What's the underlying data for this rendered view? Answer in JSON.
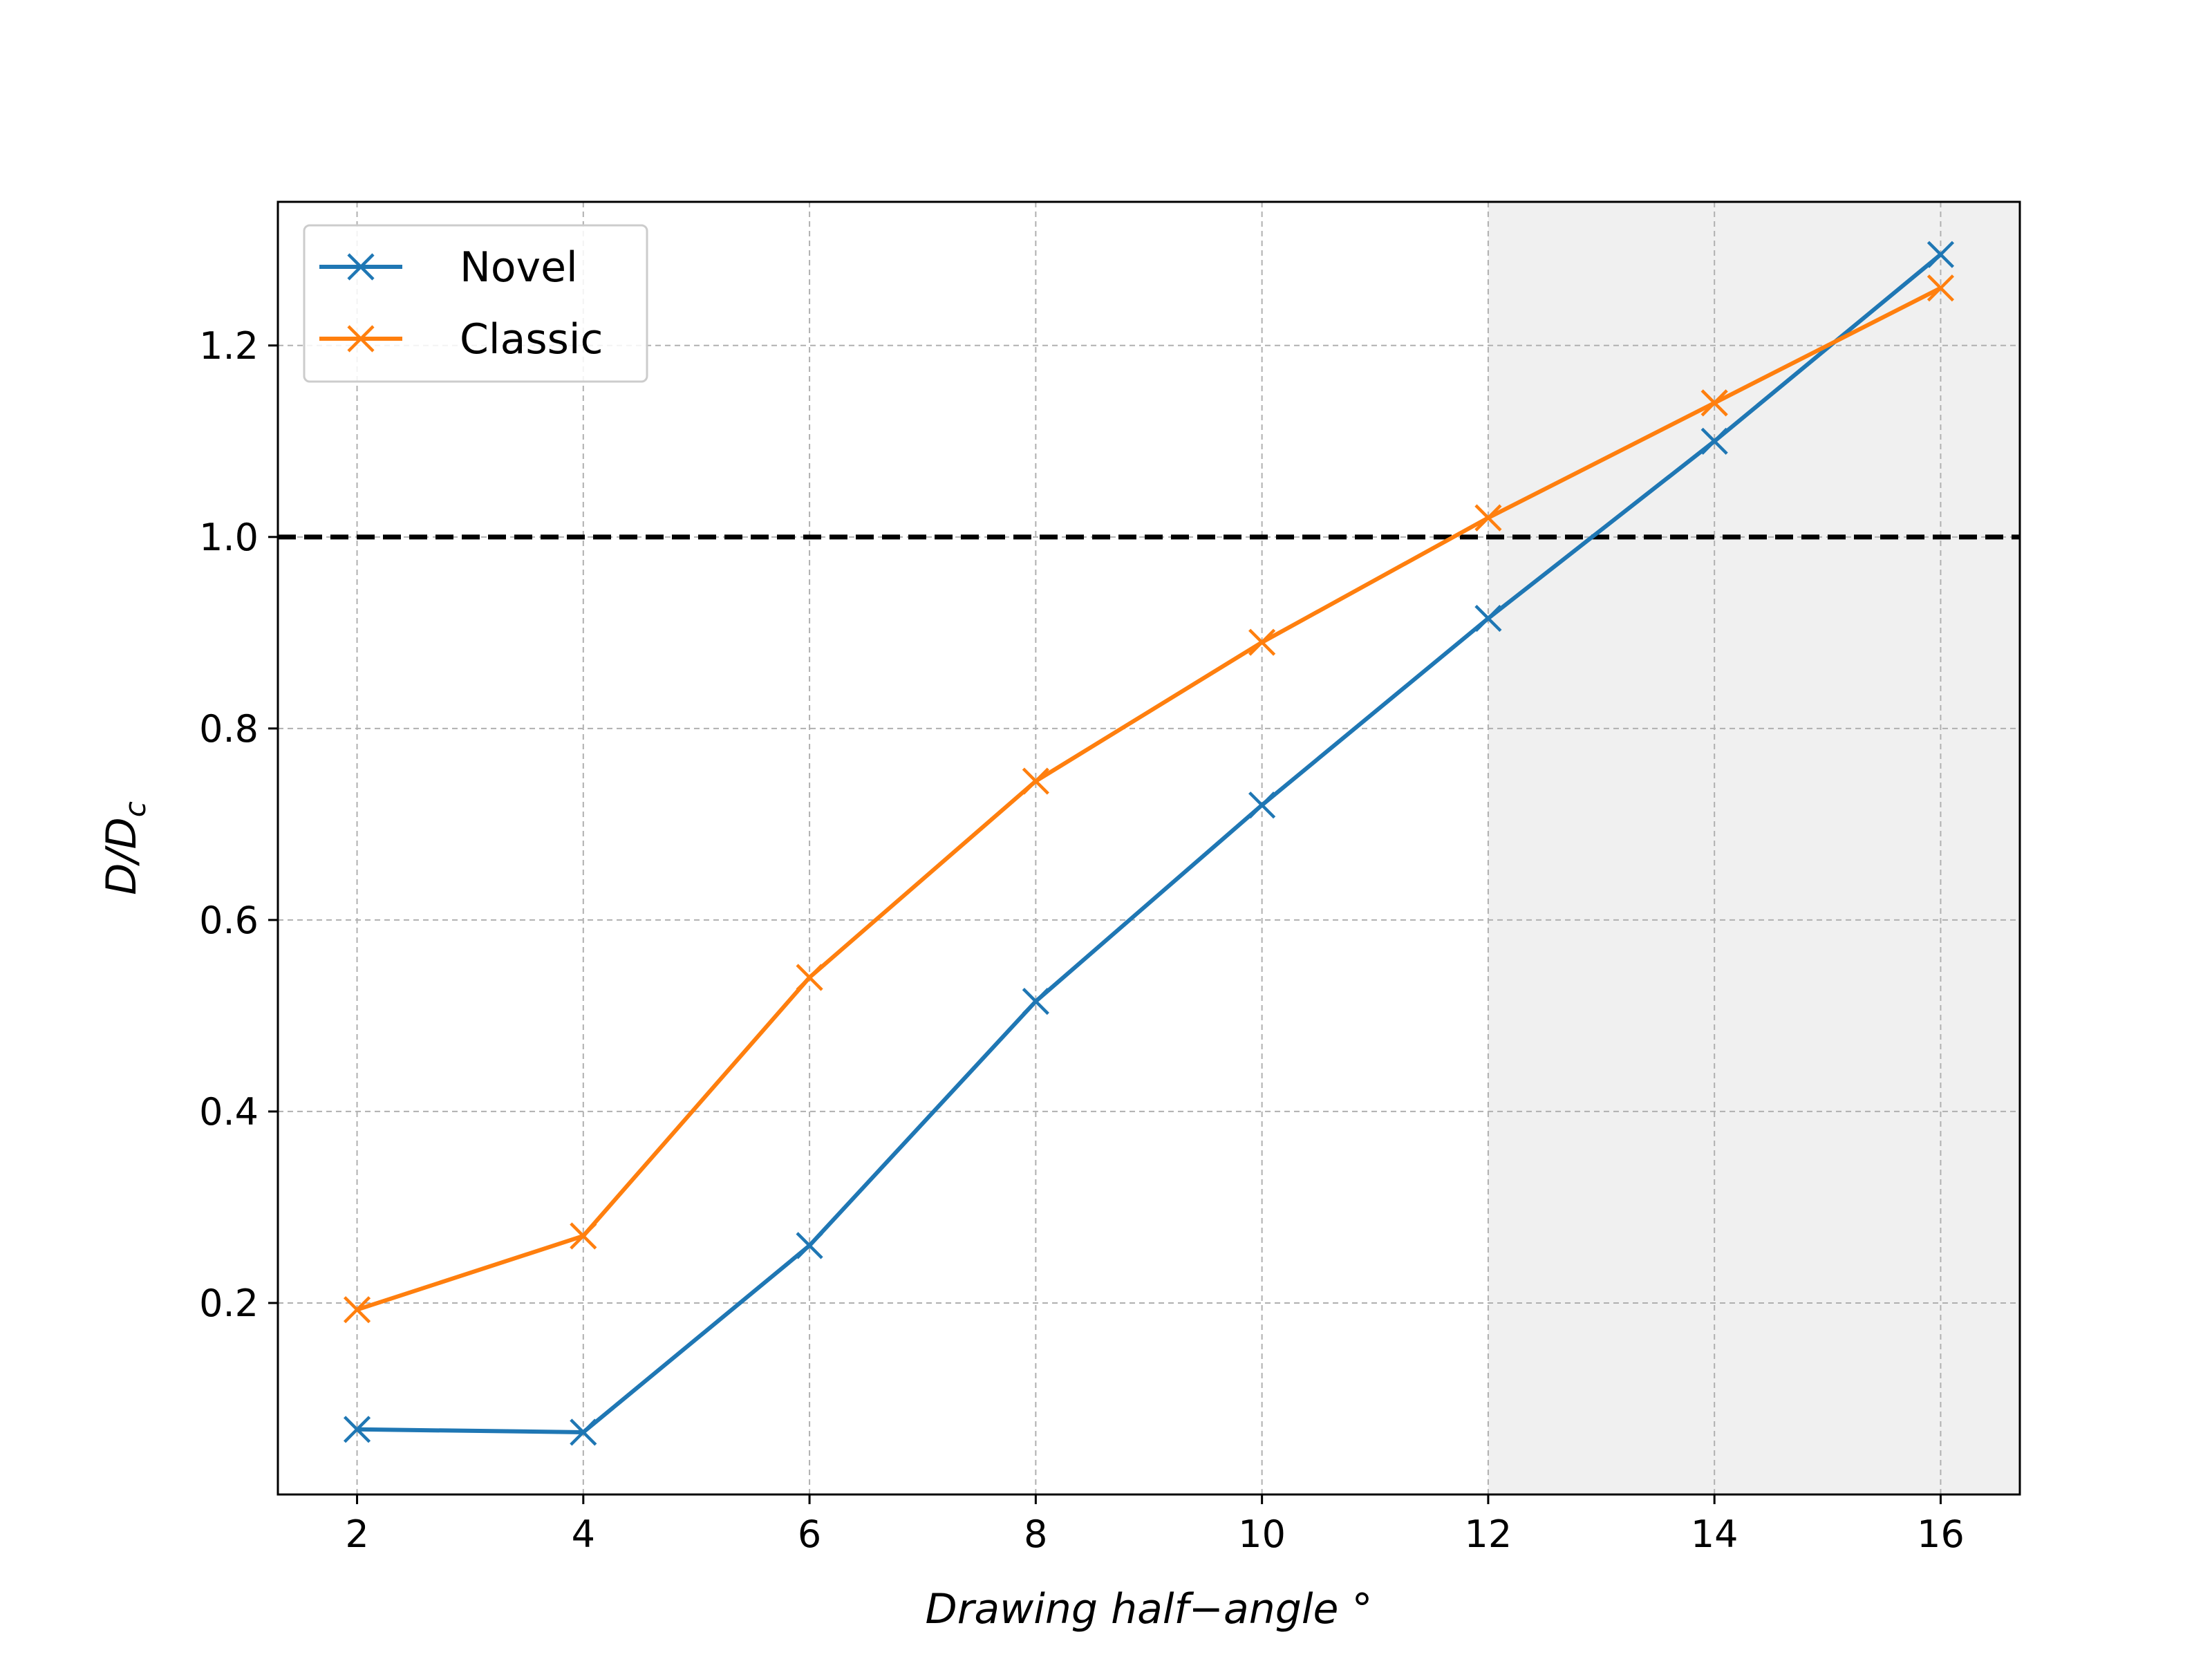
{
  "chart_data": {
    "type": "line",
    "xlabel": "Drawing half−angle °",
    "ylabel": "D/D",
    "ylabel_sub": "c",
    "xlim": [
      1.3,
      16.7
    ],
    "ylim": [
      0.0,
      1.35
    ],
    "xticks": [
      2,
      4,
      6,
      8,
      10,
      12,
      14,
      16
    ],
    "yticks": [
      0.2,
      0.4,
      0.6,
      0.8,
      1.0,
      1.2
    ],
    "grid": true,
    "legend_position": "top-left",
    "shaded_region": {
      "x_from": 12,
      "x_to": 16.7,
      "color": "#f0f0f0"
    },
    "reference_line": {
      "y": 1.0,
      "style": "dashed",
      "color": "#000000"
    },
    "x": [
      2,
      4,
      6,
      8,
      10,
      12,
      14,
      16
    ],
    "series": [
      {
        "name": "Novel",
        "color": "#1f77b4",
        "marker": "x",
        "values": [
          0.068,
          0.065,
          0.26,
          0.515,
          0.72,
          0.915,
          1.1,
          1.295
        ]
      },
      {
        "name": "Classic",
        "color": "#ff7f0e",
        "marker": "x",
        "values": [
          0.193,
          0.27,
          0.54,
          0.745,
          0.89,
          1.02,
          1.14,
          1.26
        ]
      }
    ]
  }
}
